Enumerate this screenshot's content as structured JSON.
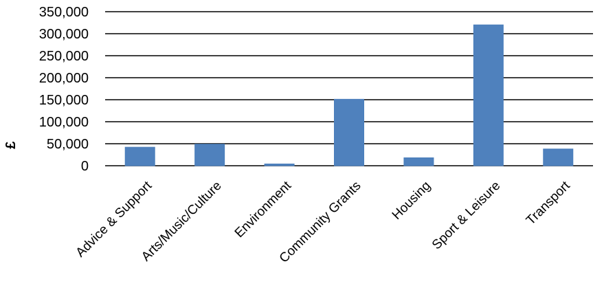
{
  "chart_data": {
    "type": "bar",
    "title": "",
    "xlabel": "",
    "ylabel": "£",
    "categories": [
      "Advice & Support",
      "Arts/Music/Culture",
      "Environment",
      "Community Grants",
      "Housing",
      "Sport & Leisure",
      "Transport"
    ],
    "values": [
      42000,
      49000,
      4000,
      151000,
      18000,
      320000,
      38000
    ],
    "ylim": [
      0,
      350000
    ],
    "yticks": [
      0,
      50000,
      100000,
      150000,
      200000,
      250000,
      300000,
      350000
    ],
    "ytick_labels": [
      "0",
      "50,000",
      "100,000",
      "150,000",
      "200,000",
      "250,000",
      "300,000",
      "350,000"
    ],
    "grid": true,
    "legend": "none",
    "bar_color": "#4f81bd"
  }
}
